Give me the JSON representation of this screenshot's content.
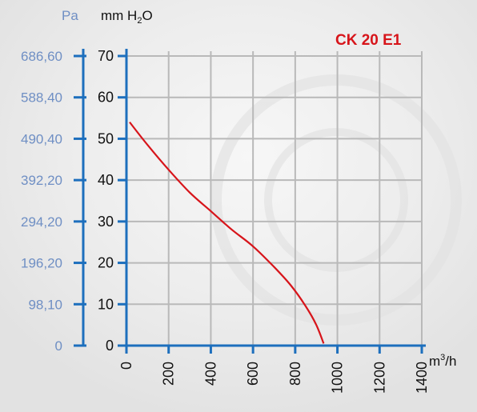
{
  "chart_data": {
    "type": "line",
    "title": "CK 20 E1",
    "pa_unit": "Pa",
    "y_unit_parts": [
      "mm H",
      "2",
      "O"
    ],
    "x_unit_parts": [
      "m",
      "3",
      "/h"
    ],
    "y_ticks": [
      0,
      10,
      20,
      30,
      40,
      50,
      60,
      70
    ],
    "pa_ticks": [
      "0",
      "98,10",
      "196,20",
      "294,20",
      "392,20",
      "490,40",
      "588,40",
      "686,60"
    ],
    "x_ticks": [
      0,
      200,
      400,
      600,
      800,
      1000,
      1200,
      1400
    ],
    "xlim": [
      0,
      1400
    ],
    "ylim": [
      0,
      70
    ],
    "grid": true,
    "colors": {
      "curve": "#d7141a",
      "axis": "#1d6fbd",
      "pa": "#6f8fc4",
      "title": "#d7141a"
    },
    "series": [
      {
        "x": [
          15,
          100,
          200,
          300,
          400,
          500,
          600,
          700,
          780,
          850,
          900,
          935
        ],
        "y": [
          54,
          48.5,
          42.5,
          37,
          32.5,
          28,
          24,
          19,
          14.5,
          9.5,
          5,
          0.5
        ]
      }
    ]
  }
}
